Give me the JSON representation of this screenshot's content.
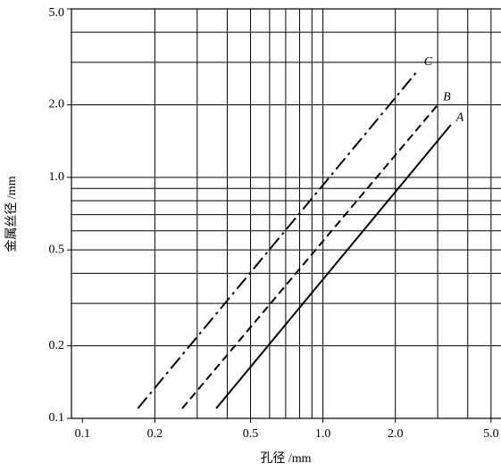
{
  "chart_data": {
    "type": "line",
    "xlabel": "孔径 /mm",
    "ylabel": "金属丝径 /mm",
    "log_x": true,
    "log_y": true,
    "grid": true,
    "xlim": [
      0.09,
      5.5
    ],
    "ylim": [
      0.1,
      5.0
    ],
    "xticks": [
      0.1,
      0.2,
      0.5,
      {
        "value": 1,
        "label": "1.0"
      },
      {
        "value": 2,
        "label": "2.0"
      },
      {
        "value": 5,
        "label": "5.0"
      }
    ],
    "yticks": [
      0.1,
      0.2,
      0.5,
      {
        "value": 1,
        "label": "1.0"
      },
      {
        "value": 2,
        "label": "2.0"
      },
      {
        "value": 5,
        "label": "5.0"
      }
    ],
    "xgrid": [
      0.2,
      0.3,
      0.4,
      0.5,
      0.6,
      0.7,
      0.8,
      0.9,
      1,
      2,
      3,
      4,
      5
    ],
    "ygrid": [
      0.2,
      0.3,
      0.4,
      0.5,
      0.6,
      0.7,
      0.8,
      0.9,
      1,
      2,
      3,
      4
    ],
    "series": [
      {
        "name": "A",
        "color": "#000000",
        "dash": "solid",
        "x": [
          0.36,
          3.4
        ],
        "values": [
          0.11,
          1.65
        ]
      },
      {
        "name": "B",
        "color": "#000000",
        "dash": "dashed",
        "x": [
          0.26,
          3.0
        ],
        "values": [
          0.11,
          2.0
        ]
      },
      {
        "name": "C",
        "color": "#000000",
        "dash": "dashdot",
        "x": [
          0.17,
          2.5
        ],
        "values": [
          0.11,
          2.8
        ]
      }
    ]
  }
}
